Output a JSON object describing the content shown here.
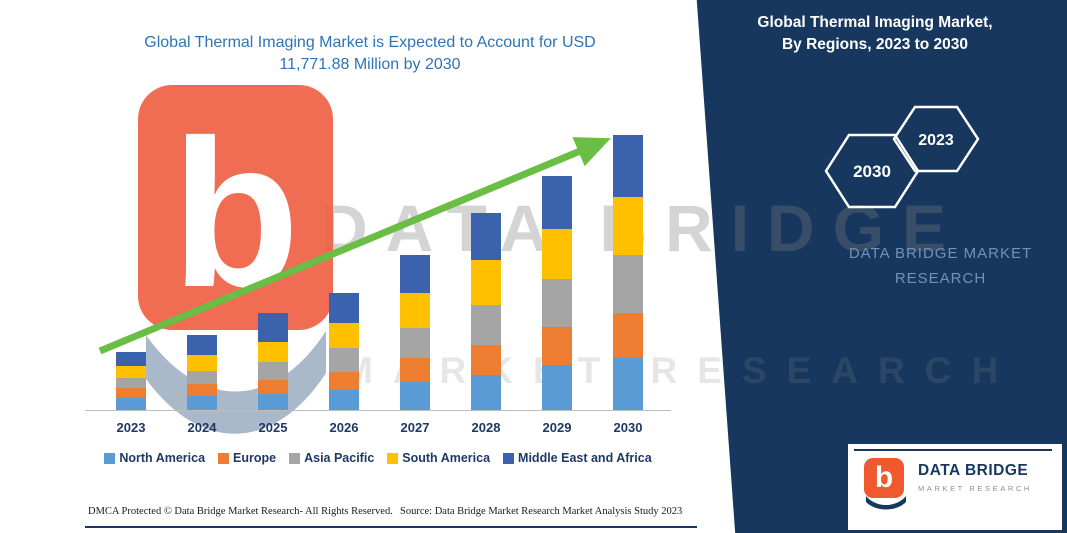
{
  "title": {
    "line1": "Global Thermal Imaging Market is Expected to Account for USD",
    "line2": "11,771.88 Million by 2030"
  },
  "panel": {
    "title_line1": "Global Thermal Imaging Market,",
    "title_line2": "By Regions, 2023 to 2030",
    "hexagon_left": "2030",
    "hexagon_right": "2023",
    "brand_line1": "DATA BRIDGE MARKET",
    "brand_line2": "RESEARCH",
    "background_color": "#17375e"
  },
  "watermark": {
    "title_text": "DATA BRIDGE",
    "subtitle_text": "MARKET RESEARCH",
    "logo_letter": "b"
  },
  "chart_data": {
    "type": "bar",
    "stacked": true,
    "title": "Global Thermal Imaging Market is Expected to Account for USD 11,771.88 Million by 2030",
    "units": "USD Million",
    "categories": [
      "2023",
      "2024",
      "2025",
      "2026",
      "2027",
      "2028",
      "2029",
      "2030"
    ],
    "series": [
      {
        "name": "North America",
        "color": "#5b9bd5",
        "values": [
          520,
          600,
          685,
          855,
          1200,
          1500,
          1925,
          2225
        ]
      },
      {
        "name": "Europe",
        "color": "#ed7d31",
        "values": [
          430,
          515,
          600,
          770,
          1025,
          1285,
          1625,
          1925
        ]
      },
      {
        "name": "Asia Pacific",
        "color": "#a5a5a5",
        "values": [
          430,
          555,
          770,
          1025,
          1285,
          1710,
          2055,
          2480
        ]
      },
      {
        "name": "South America",
        "color": "#ffc000",
        "values": [
          510,
          685,
          855,
          1070,
          1500,
          1925,
          2140,
          2485
        ]
      },
      {
        "name": "Middle East and Africa",
        "color": "#3a62ad",
        "values": [
          600,
          855,
          1240,
          1285,
          1625,
          2010,
          2270,
          2656.88
        ]
      }
    ],
    "totals": [
      2490,
      3210,
      4150,
      5005,
      6635,
      8430,
      10015,
      11771.88
    ],
    "ylim": [
      0,
      11771.88
    ],
    "y_axis_visible": false,
    "grid": false,
    "legend_position": "bottom",
    "trend_arrow": true,
    "trend_arrow_color": "#6abd45"
  },
  "footer": {
    "dmca_text": "DMCA Protected © Data Bridge Market Research-  All Rights Reserved.",
    "source_text": "Source: Data Bridge Market Research  Market Analysis Study 2023"
  },
  "logo_card": {
    "icon_letter": "b",
    "brand_name": "DATA BRIDGE",
    "brand_subtitle": "MARKET RESEARCH"
  }
}
